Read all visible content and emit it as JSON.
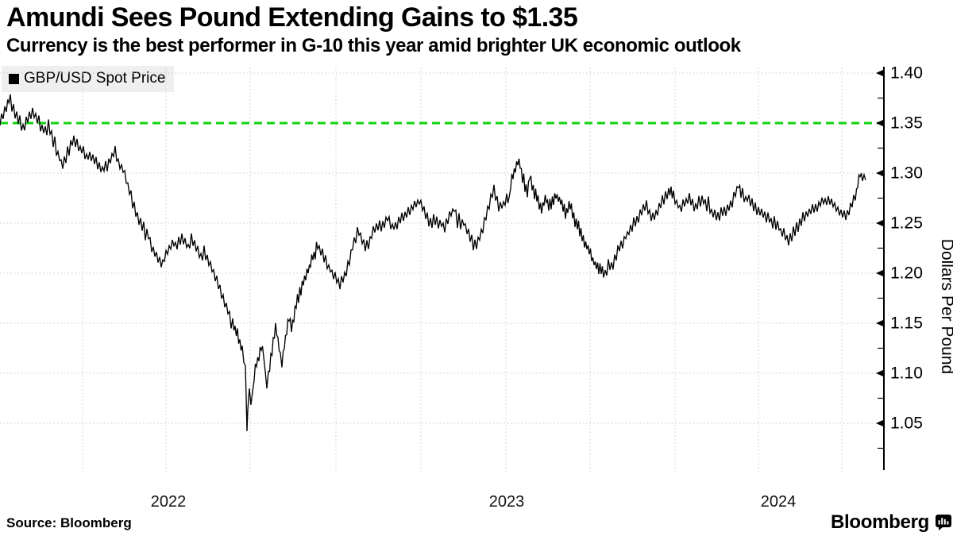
{
  "header": {
    "title": "Amundi Sees Pound Extending Gains to $1.35",
    "subtitle": "Currency is the best performer in G-10 this year amid brighter UK economic outlook"
  },
  "legend": {
    "label": "GBP/USD Spot Price"
  },
  "footer": {
    "source": "Source: Bloomberg",
    "brand": "Bloomberg"
  },
  "chart_data": {
    "type": "line",
    "title": "Amundi Sees Pound Extending Gains to $1.35",
    "ylabel": "Dollars Per Pound",
    "ylim": [
      1.0,
      1.41
    ],
    "grid": true,
    "legend_position": "top-left",
    "xtick_labels": [
      "2022",
      "2023",
      "2024"
    ],
    "yticks": [
      {
        "value": 1.4,
        "label": "1.40"
      },
      {
        "value": 1.35,
        "label": "1.35"
      },
      {
        "value": 1.3,
        "label": "1.30"
      },
      {
        "value": 1.25,
        "label": "1.25"
      },
      {
        "value": 1.2,
        "label": "1.20"
      },
      {
        "value": 1.15,
        "label": "1.15"
      },
      {
        "value": 1.1,
        "label": "1.10"
      },
      {
        "value": 1.05,
        "label": "1.05"
      }
    ],
    "reference_line": {
      "value": 1.35,
      "color": "#12d312",
      "style": "dashed"
    },
    "series": [
      {
        "name": "GBP/USD Spot Price",
        "color": "#000000",
        "x_unit": "px-along-time-axis (late 2021 to mid 2024)",
        "points": [
          [
            0,
            1.352
          ],
          [
            4,
            1.359
          ],
          [
            8,
            1.366
          ],
          [
            13,
            1.375
          ],
          [
            17,
            1.366
          ],
          [
            21,
            1.358
          ],
          [
            25,
            1.351
          ],
          [
            29,
            1.345
          ],
          [
            33,
            1.351
          ],
          [
            37,
            1.357
          ],
          [
            41,
            1.361
          ],
          [
            45,
            1.355
          ],
          [
            49,
            1.35
          ],
          [
            53,
            1.345
          ],
          [
            57,
            1.341
          ],
          [
            61,
            1.347
          ],
          [
            65,
            1.337
          ],
          [
            69,
            1.328
          ],
          [
            73,
            1.319
          ],
          [
            77,
            1.311
          ],
          [
            81,
            1.306
          ],
          [
            85,
            1.321
          ],
          [
            89,
            1.328
          ],
          [
            93,
            1.332
          ],
          [
            97,
            1.329
          ],
          [
            101,
            1.325
          ],
          [
            105,
            1.321
          ],
          [
            109,
            1.316
          ],
          [
            113,
            1.319
          ],
          [
            117,
            1.315
          ],
          [
            121,
            1.311
          ],
          [
            125,
            1.307
          ],
          [
            129,
            1.303
          ],
          [
            133,
            1.307
          ],
          [
            137,
            1.311
          ],
          [
            141,
            1.317
          ],
          [
            145,
            1.323
          ],
          [
            149,
            1.311
          ],
          [
            153,
            1.305
          ],
          [
            157,
            1.3
          ],
          [
            161,
            1.289
          ],
          [
            165,
            1.277
          ],
          [
            169,
            1.264
          ],
          [
            173,
            1.256
          ],
          [
            177,
            1.25
          ],
          [
            181,
            1.246
          ],
          [
            185,
            1.241
          ],
          [
            189,
            1.231
          ],
          [
            193,
            1.223
          ],
          [
            197,
            1.217
          ],
          [
            201,
            1.212
          ],
          [
            205,
            1.211
          ],
          [
            209,
            1.218
          ],
          [
            213,
            1.226
          ],
          [
            217,
            1.231
          ],
          [
            221,
            1.227
          ],
          [
            225,
            1.232
          ],
          [
            229,
            1.236
          ],
          [
            233,
            1.23
          ],
          [
            237,
            1.227
          ],
          [
            241,
            1.233
          ],
          [
            245,
            1.229
          ],
          [
            249,
            1.224
          ],
          [
            253,
            1.218
          ],
          [
            257,
            1.224
          ],
          [
            261,
            1.215
          ],
          [
            265,
            1.208
          ],
          [
            269,
            1.2
          ],
          [
            273,
            1.192
          ],
          [
            277,
            1.185
          ],
          [
            281,
            1.175
          ],
          [
            285,
            1.165
          ],
          [
            289,
            1.157
          ],
          [
            293,
            1.149
          ],
          [
            296,
            1.142
          ],
          [
            299,
            1.139
          ],
          [
            302,
            1.13
          ],
          [
            305,
            1.123
          ],
          [
            307,
            1.114
          ],
          [
            309,
            1.104
          ],
          [
            310,
            1.078
          ],
          [
            311,
            1.037
          ],
          [
            312,
            1.068
          ],
          [
            314,
            1.082
          ],
          [
            316,
            1.073
          ],
          [
            318,
            1.079
          ],
          [
            320,
            1.096
          ],
          [
            323,
            1.109
          ],
          [
            326,
            1.117
          ],
          [
            329,
            1.127
          ],
          [
            332,
            1.119
          ],
          [
            334,
            1.099
          ],
          [
            336,
            1.086
          ],
          [
            338,
            1.097
          ],
          [
            341,
            1.113
          ],
          [
            344,
            1.131
          ],
          [
            347,
            1.148
          ],
          [
            350,
            1.133
          ],
          [
            353,
            1.118
          ],
          [
            355,
            1.11
          ],
          [
            358,
            1.128
          ],
          [
            361,
            1.141
          ],
          [
            364,
            1.156
          ],
          [
            367,
            1.145
          ],
          [
            370,
            1.154
          ],
          [
            373,
            1.17
          ],
          [
            376,
            1.176
          ],
          [
            379,
            1.184
          ],
          [
            382,
            1.191
          ],
          [
            385,
            1.198
          ],
          [
            388,
            1.204
          ],
          [
            391,
            1.21
          ],
          [
            394,
            1.216
          ],
          [
            397,
            1.221
          ],
          [
            400,
            1.228
          ],
          [
            404,
            1.222
          ],
          [
            408,
            1.216
          ],
          [
            412,
            1.21
          ],
          [
            416,
            1.204
          ],
          [
            420,
            1.199
          ],
          [
            424,
            1.195
          ],
          [
            428,
            1.19
          ],
          [
            432,
            1.194
          ],
          [
            436,
            1.202
          ],
          [
            440,
            1.212
          ],
          [
            444,
            1.226
          ],
          [
            448,
            1.236
          ],
          [
            452,
            1.242
          ],
          [
            456,
            1.233
          ],
          [
            460,
            1.227
          ],
          [
            464,
            1.231
          ],
          [
            468,
            1.238
          ],
          [
            472,
            1.244
          ],
          [
            476,
            1.248
          ],
          [
            480,
            1.245
          ],
          [
            484,
            1.25
          ],
          [
            488,
            1.254
          ],
          [
            492,
            1.249
          ],
          [
            496,
            1.246
          ],
          [
            500,
            1.25
          ],
          [
            504,
            1.254
          ],
          [
            508,
            1.257
          ],
          [
            512,
            1.26
          ],
          [
            516,
            1.263
          ],
          [
            520,
            1.266
          ],
          [
            524,
            1.269
          ],
          [
            528,
            1.272
          ],
          [
            532,
            1.267
          ],
          [
            536,
            1.26
          ],
          [
            540,
            1.254
          ],
          [
            544,
            1.25
          ],
          [
            548,
            1.254
          ],
          [
            552,
            1.249
          ],
          [
            556,
            1.25
          ],
          [
            560,
            1.246
          ],
          [
            564,
            1.253
          ],
          [
            568,
            1.26
          ],
          [
            572,
            1.266
          ],
          [
            576,
            1.252
          ],
          [
            580,
            1.247
          ],
          [
            584,
            1.251
          ],
          [
            588,
            1.243
          ],
          [
            592,
            1.237
          ],
          [
            596,
            1.232
          ],
          [
            600,
            1.229
          ],
          [
            604,
            1.236
          ],
          [
            608,
            1.246
          ],
          [
            612,
            1.258
          ],
          [
            616,
            1.268
          ],
          [
            620,
            1.28
          ],
          [
            622,
            1.285
          ],
          [
            626,
            1.272
          ],
          [
            630,
            1.264
          ],
          [
            634,
            1.27
          ],
          [
            638,
            1.274
          ],
          [
            641,
            1.271
          ],
          [
            643,
            1.288
          ],
          [
            646,
            1.298
          ],
          [
            649,
            1.306
          ],
          [
            652,
            1.313
          ],
          [
            655,
            1.309
          ],
          [
            658,
            1.295
          ],
          [
            661,
            1.285
          ],
          [
            664,
            1.281
          ],
          [
            667,
            1.296
          ],
          [
            670,
            1.286
          ],
          [
            673,
            1.28
          ],
          [
            676,
            1.276
          ],
          [
            679,
            1.27
          ],
          [
            682,
            1.263
          ],
          [
            685,
            1.27
          ],
          [
            688,
            1.274
          ],
          [
            691,
            1.267
          ],
          [
            694,
            1.27
          ],
          [
            697,
            1.274
          ],
          [
            700,
            1.277
          ],
          [
            703,
            1.275
          ],
          [
            706,
            1.271
          ],
          [
            709,
            1.266
          ],
          [
            712,
            1.261
          ],
          [
            715,
            1.266
          ],
          [
            718,
            1.268
          ],
          [
            721,
            1.258
          ],
          [
            724,
            1.252
          ],
          [
            727,
            1.248
          ],
          [
            730,
            1.243
          ],
          [
            733,
            1.237
          ],
          [
            736,
            1.231
          ],
          [
            739,
            1.227
          ],
          [
            742,
            1.222
          ],
          [
            745,
            1.217
          ],
          [
            748,
            1.212
          ],
          [
            751,
            1.208
          ],
          [
            754,
            1.205
          ],
          [
            757,
            1.203
          ],
          [
            760,
            1.201
          ],
          [
            762,
            1.199
          ],
          [
            766,
            1.21
          ],
          [
            770,
            1.203
          ],
          [
            774,
            1.214
          ],
          [
            778,
            1.221
          ],
          [
            782,
            1.228
          ],
          [
            786,
            1.234
          ],
          [
            790,
            1.239
          ],
          [
            794,
            1.244
          ],
          [
            798,
            1.248
          ],
          [
            802,
            1.252
          ],
          [
            806,
            1.258
          ],
          [
            810,
            1.264
          ],
          [
            814,
            1.268
          ],
          [
            818,
            1.26
          ],
          [
            822,
            1.255
          ],
          [
            826,
            1.258
          ],
          [
            830,
            1.265
          ],
          [
            834,
            1.272
          ],
          [
            838,
            1.277
          ],
          [
            842,
            1.281
          ],
          [
            845,
            1.284
          ],
          [
            848,
            1.277
          ],
          [
            852,
            1.27
          ],
          [
            856,
            1.264
          ],
          [
            860,
            1.268
          ],
          [
            864,
            1.272
          ],
          [
            868,
            1.274
          ],
          [
            872,
            1.27
          ],
          [
            876,
            1.267
          ],
          [
            880,
            1.271
          ],
          [
            884,
            1.273
          ],
          [
            888,
            1.27
          ],
          [
            892,
            1.266
          ],
          [
            896,
            1.261
          ],
          [
            900,
            1.258
          ],
          [
            904,
            1.256
          ],
          [
            908,
            1.26
          ],
          [
            912,
            1.263
          ],
          [
            916,
            1.265
          ],
          [
            920,
            1.269
          ],
          [
            924,
            1.275
          ],
          [
            928,
            1.285
          ],
          [
            930,
            1.289
          ],
          [
            933,
            1.281
          ],
          [
            937,
            1.277
          ],
          [
            941,
            1.274
          ],
          [
            945,
            1.271
          ],
          [
            949,
            1.268
          ],
          [
            953,
            1.265
          ],
          [
            957,
            1.262
          ],
          [
            961,
            1.259
          ],
          [
            965,
            1.256
          ],
          [
            969,
            1.254
          ],
          [
            973,
            1.251
          ],
          [
            977,
            1.248
          ],
          [
            981,
            1.245
          ],
          [
            985,
            1.241
          ],
          [
            989,
            1.236
          ],
          [
            993,
            1.231
          ],
          [
            997,
            1.238
          ],
          [
            1001,
            1.244
          ],
          [
            1005,
            1.249
          ],
          [
            1009,
            1.253
          ],
          [
            1013,
            1.256
          ],
          [
            1017,
            1.259
          ],
          [
            1021,
            1.262
          ],
          [
            1025,
            1.264
          ],
          [
            1029,
            1.266
          ],
          [
            1033,
            1.269
          ],
          [
            1037,
            1.271
          ],
          [
            1041,
            1.273
          ],
          [
            1045,
            1.272
          ],
          [
            1049,
            1.269
          ],
          [
            1053,
            1.265
          ],
          [
            1057,
            1.262
          ],
          [
            1061,
            1.26
          ],
          [
            1065,
            1.258
          ],
          [
            1069,
            1.263
          ],
          [
            1073,
            1.269
          ],
          [
            1077,
            1.277
          ],
          [
            1080,
            1.287
          ],
          [
            1083,
            1.301
          ],
          [
            1086,
            1.295
          ],
          [
            1090,
            1.293
          ]
        ]
      }
    ]
  }
}
